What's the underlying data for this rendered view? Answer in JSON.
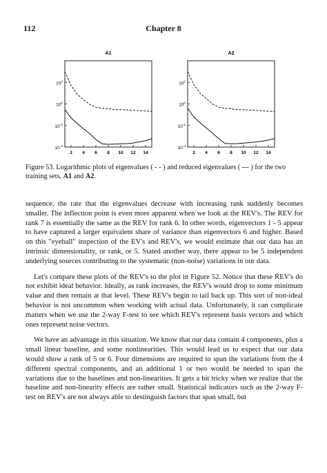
{
  "header": {
    "page_number": "112",
    "chapter": "Chapter 8"
  },
  "chart_data": [
    {
      "type": "line",
      "title": "A1",
      "x": [
        1,
        2,
        3,
        4,
        5,
        6,
        7,
        8,
        9,
        10,
        11,
        12,
        13,
        14,
        15
      ],
      "x_ticks": [
        "2",
        "4",
        "6",
        "8",
        "10",
        "12",
        "14"
      ],
      "y_scale": "log",
      "y_ticks": [
        "10^2",
        "10^0",
        "10^-2",
        "10^-4"
      ],
      "ylim": [
        0.0001,
        10000
      ],
      "series": [
        {
          "style": "dashed",
          "values": [
            1000,
            50,
            8,
            2.5,
            0.9,
            0.5,
            0.4,
            0.35,
            0.3,
            0.3,
            0.28,
            0.26,
            0.24,
            0.22,
            0.2
          ]
        },
        {
          "style": "solid",
          "values": [
            0.3,
            0.05,
            0.015,
            0.005,
            0.0018,
            0.0005,
            0.0002,
            0.00018,
            0.00019,
            0.0002,
            0.00021,
            0.00024,
            0.0003,
            0.0004,
            0.0006
          ]
        }
      ]
    },
    {
      "type": "line",
      "title": "A2",
      "x": [
        1,
        2,
        3,
        4,
        5,
        6,
        7,
        8,
        9,
        10,
        11,
        12,
        13,
        14,
        15
      ],
      "x_ticks": [
        "2",
        "4",
        "6",
        "8",
        "10",
        "12",
        "14"
      ],
      "y_scale": "log",
      "y_ticks": [
        "10^2",
        "10^0",
        "10^-2",
        "10^-4"
      ],
      "ylim": [
        0.0001,
        10000
      ],
      "series": [
        {
          "style": "dashed",
          "values": [
            1000,
            60,
            10,
            3,
            1,
            0.5,
            0.4,
            0.35,
            0.3,
            0.3,
            0.27,
            0.25,
            0.23,
            0.21,
            0.2
          ]
        },
        {
          "style": "solid",
          "values": [
            0.4,
            0.06,
            0.018,
            0.006,
            0.002,
            0.0006,
            0.00022,
            0.0002,
            0.00021,
            0.00023,
            0.00026,
            0.0003,
            0.00035,
            0.00045,
            0.0006
          ]
        }
      ]
    }
  ],
  "caption": {
    "lead": "Figure 53. Logarithmic plots of eigenvalues ( - - ) and reduced eigenvalues ( --- ) for the two training sets, ",
    "set1": "A1",
    "and": " and ",
    "set2": "A2",
    "end": "."
  },
  "paragraphs": [
    "sequence, the rate that the eigenvalues decrease with increasing rank suddenly becomes smaller. The inflection point is even more apparent when we look at the REV's. The REV for rank 7 is essentially the same as the REV for rank 6. In other words, eigenvectors 1 - 5 appear to have captured a larger equivalent share of variance than eigenvectors 6 and higher. Based on this \"eyeball\" inspection of the EV's and REV's, we would estimate that our data has an intrinsic dimensionality, or rank, or 5. Stated another way, there appear to be 5 independent underlying sources contributing to the systematic (non-noise) variations in our data.",
    "Let's compare these plots of the REV's to the plot in Figure 52. Notice that these REV's do not exhibit ideal behavior. Ideally, as rank increases, the REV's would drop to some minimum value and then remain at that level. These REV's begin to tail back up. This sort of non-ideal behavior is not uncommon when working with actual data. Unfortunately, it can complicate matters when we use the 2-way F-test to see which REV's represent basis vectors and which ones represent noise vectors.",
    "We have an advantage in this situation. We know that our data contain 4 components, plus a small linear baseline, and some nonlinearities. This would lead us to expect that our data would show a rank of 5 or 6. Four dimensions are required to span the variations from the 4 different spectral components, and an additional 1 or two would be needed to span the variations due to the baselines and non-linearities. It gets a bit tricky when we realize that the baseline and non-linearity effects are rather small. Statistical indicators such as the 2-way F-test on REV's are not always able to destinguish factors that span small, but"
  ]
}
